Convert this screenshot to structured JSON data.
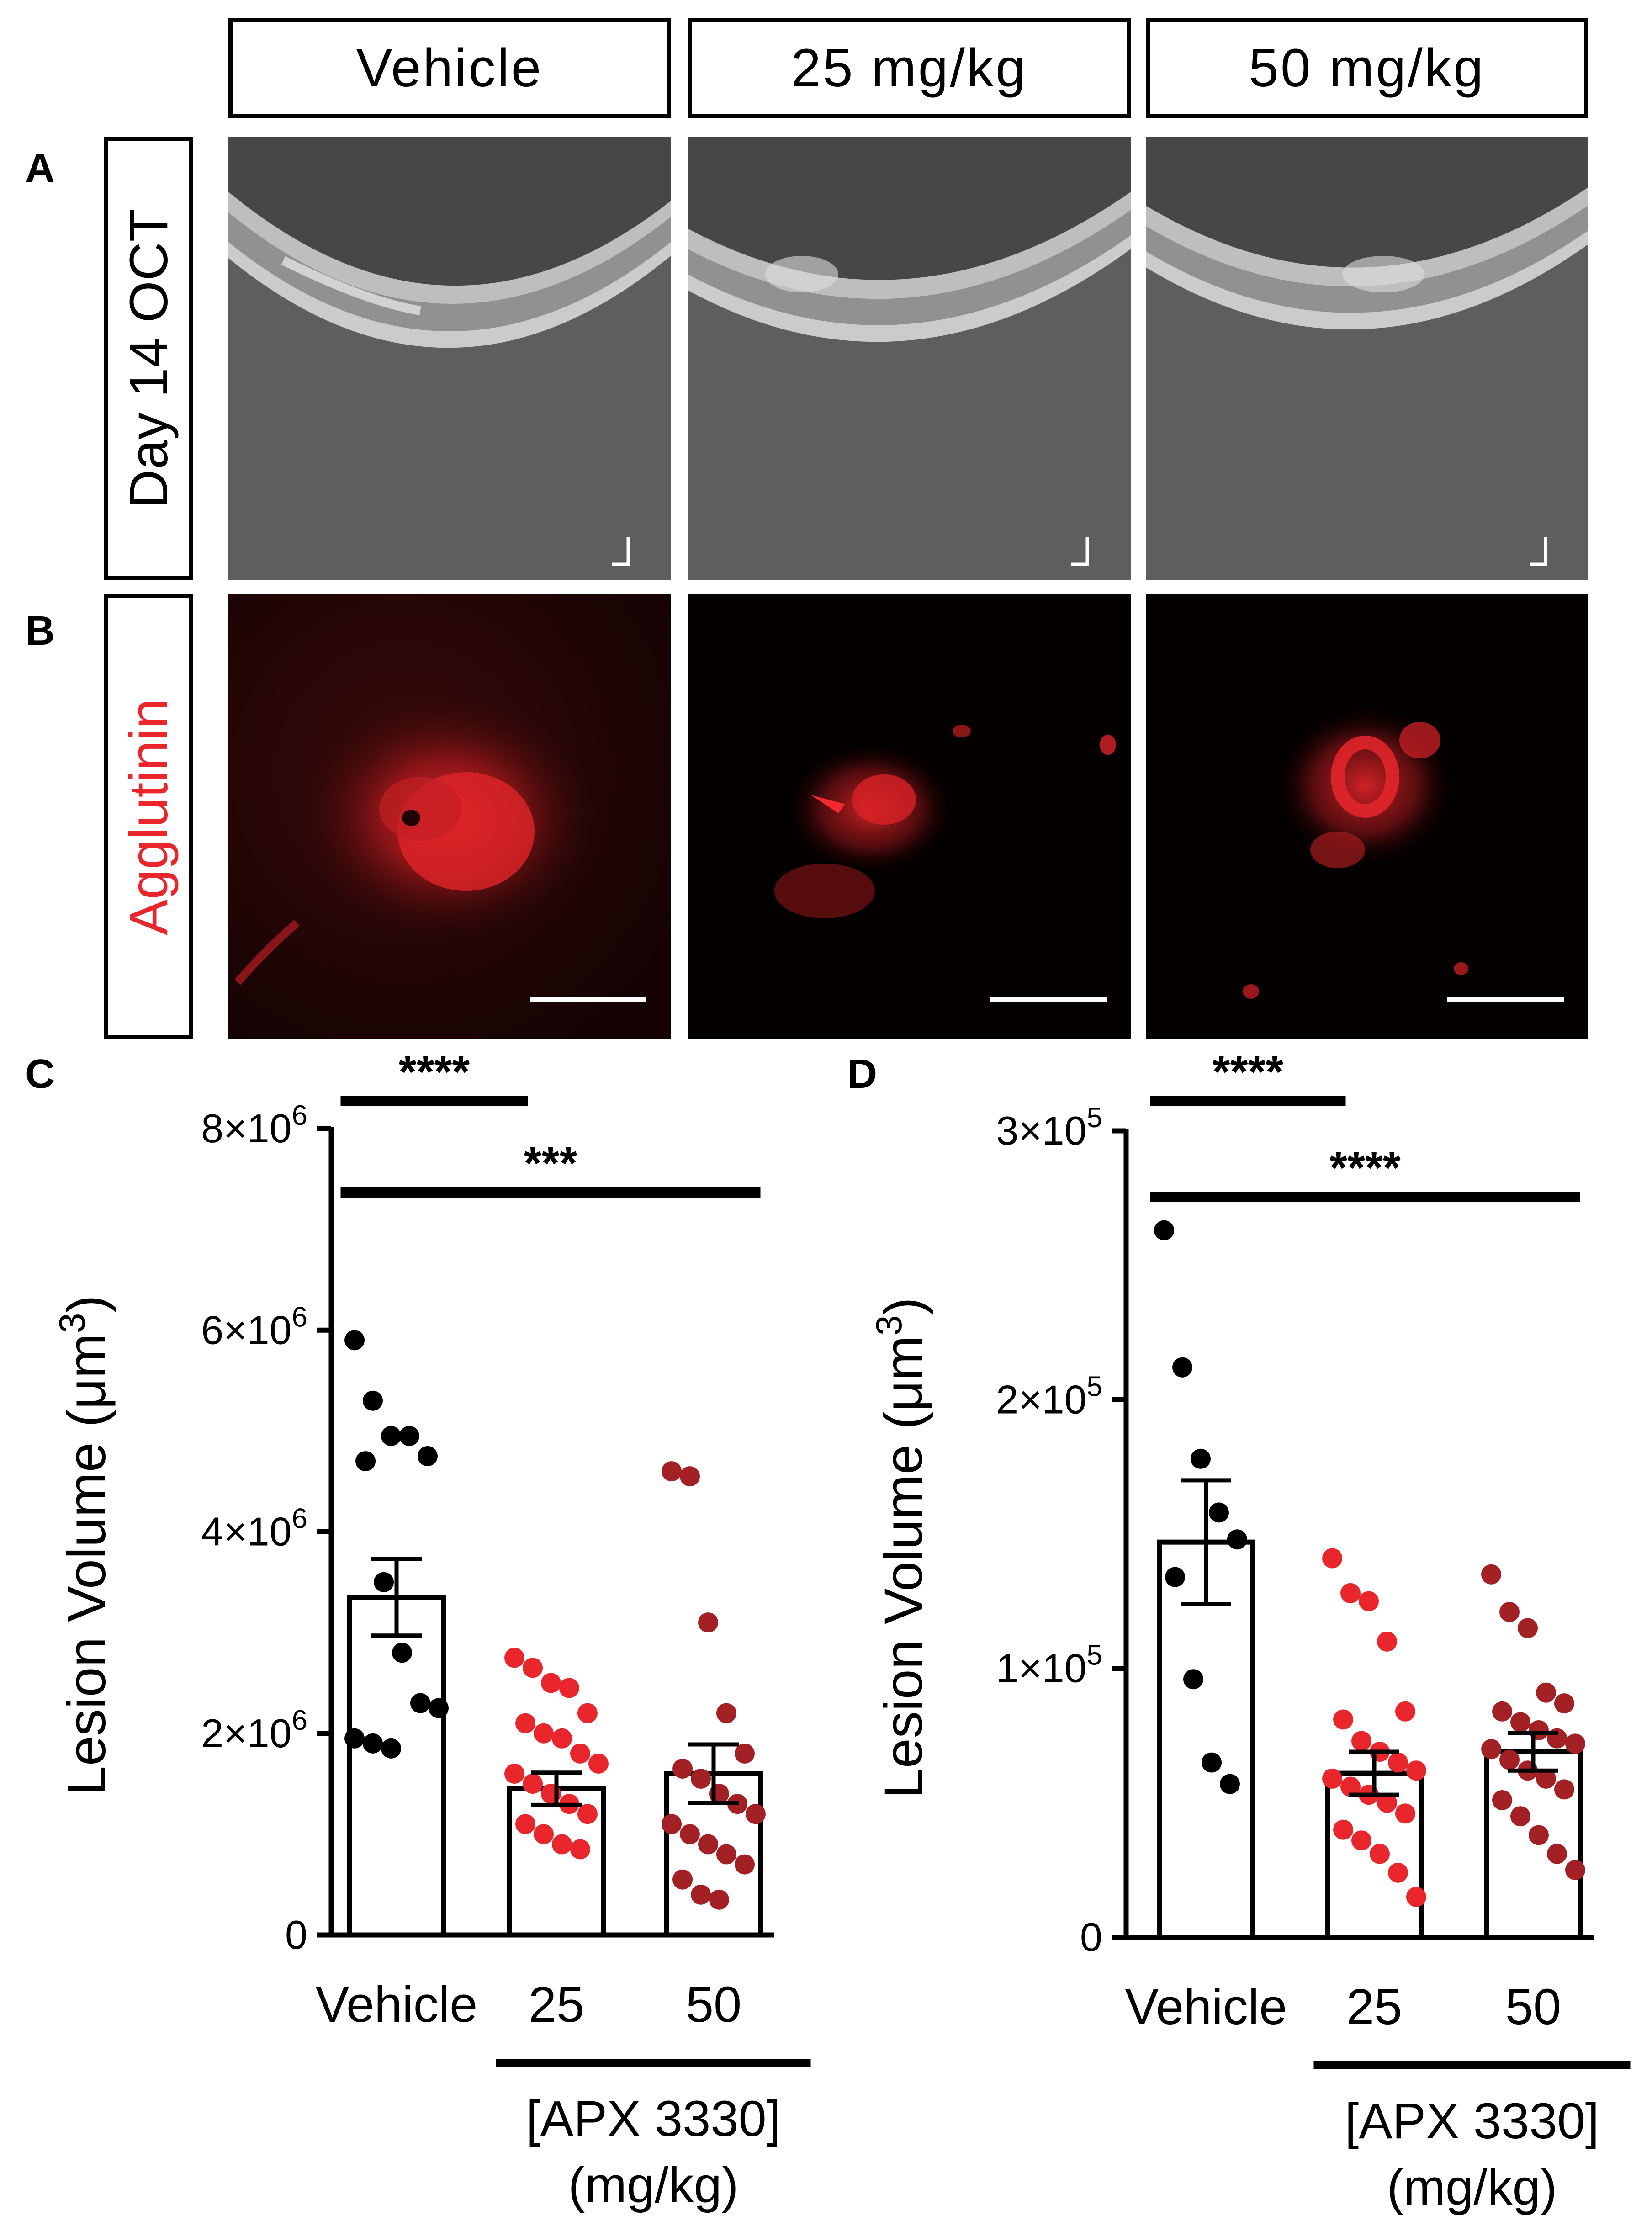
{
  "panels": {
    "a": "A",
    "b": "B",
    "c": "C",
    "d": "D"
  },
  "columns": [
    "Vehicle",
    "25 mg/kg",
    "50 mg/kg"
  ],
  "rows": {
    "oct": {
      "label": "Day 14 OCT",
      "label_color": "#000000"
    },
    "agglutinin": {
      "label": "Agglutinin",
      "label_color": "#e8262b"
    }
  },
  "colors": {
    "vehicle_points": "#000000",
    "dose25_points": "#e8262b",
    "dose50_points": "#a32124",
    "oct_background": "#5f5f5f",
    "fluor_background": "#000000",
    "fluor_signal": "#d81e22"
  },
  "chart_data": [
    {
      "type": "bar",
      "panel": "C",
      "categories": [
        "Vehicle",
        "25",
        "50"
      ],
      "values": [
        3350000,
        1450000,
        1600000
      ],
      "sem": [
        380000,
        160000,
        290000
      ],
      "ylabel": "Lesion Volume (μm³)",
      "ylabel_main": "Lesion Volume (μm",
      "ylabel_sup": "3",
      "ylabel_close": ")",
      "ylim": [
        0,
        8000000
      ],
      "yticks": [
        0,
        2000000,
        4000000,
        6000000,
        8000000
      ],
      "ytick_labels": [
        {
          "base": "0",
          "exp": ""
        },
        {
          "base": "2×10",
          "exp": "6"
        },
        {
          "base": "4×10",
          "exp": "6"
        },
        {
          "base": "6×10",
          "exp": "6"
        },
        {
          "base": "8×10",
          "exp": "6"
        }
      ],
      "group_label": "[APX 3330]",
      "group_unit": "(mg/kg)",
      "points": [
        [
          5900000,
          5300000,
          4950000,
          4950000,
          4750000,
          4700000,
          3500000,
          2800000,
          2300000,
          2250000,
          1950000,
          1900000,
          1850000
        ],
        [
          2750000,
          2650000,
          2500000,
          2450000,
          2200000,
          2100000,
          2000000,
          1950000,
          1800000,
          1700000,
          1600000,
          1500000,
          1400000,
          1300000,
          1200000,
          1100000,
          1000000,
          900000,
          850000
        ],
        [
          4600000,
          4550000,
          3100000,
          2200000,
          1800000,
          1650000,
          1550000,
          1400000,
          1300000,
          1200000,
          1100000,
          1000000,
          900000,
          800000,
          700000,
          550000,
          400000,
          350000
        ]
      ],
      "significance": [
        {
          "from": 0,
          "to": 1,
          "label": "****"
        },
        {
          "from": 0,
          "to": 2,
          "label": "***"
        }
      ]
    },
    {
      "type": "bar",
      "panel": "D",
      "categories": [
        "Vehicle",
        "25",
        "50"
      ],
      "values": [
        147000,
        61000,
        69000
      ],
      "sem": [
        23000,
        8000,
        7000
      ],
      "ylabel": "Lesion Volume (μm³)",
      "ylabel_main": "Lesion Volume (μm",
      "ylabel_sup": "3",
      "ylabel_close": ")",
      "ylim": [
        0,
        300000
      ],
      "yticks": [
        0,
        100000,
        200000,
        300000
      ],
      "ytick_labels": [
        {
          "base": "0",
          "exp": ""
        },
        {
          "base": "1×10",
          "exp": "5"
        },
        {
          "base": "2×10",
          "exp": "5"
        },
        {
          "base": "3×10",
          "exp": "5"
        }
      ],
      "group_label": "[APX 3330]",
      "group_unit": "(mg/kg)",
      "points": [
        [
          263000,
          212000,
          178000,
          158000,
          148000,
          134000,
          96000,
          65000,
          57000
        ],
        [
          141000,
          128000,
          125000,
          110000,
          84000,
          81000,
          73000,
          69000,
          65000,
          62000,
          59000,
          56000,
          53000,
          50000,
          46000,
          40000,
          36000,
          31000,
          24000,
          15000
        ],
        [
          135000,
          121000,
          115000,
          91000,
          87000,
          84000,
          80000,
          77000,
          74000,
          72000,
          70000,
          66000,
          62000,
          59000,
          55000,
          51000,
          45000,
          38000,
          31000,
          25000
        ]
      ],
      "significance": [
        {
          "from": 0,
          "to": 1,
          "label": "****"
        },
        {
          "from": 0,
          "to": 2,
          "label": "****"
        }
      ]
    }
  ]
}
